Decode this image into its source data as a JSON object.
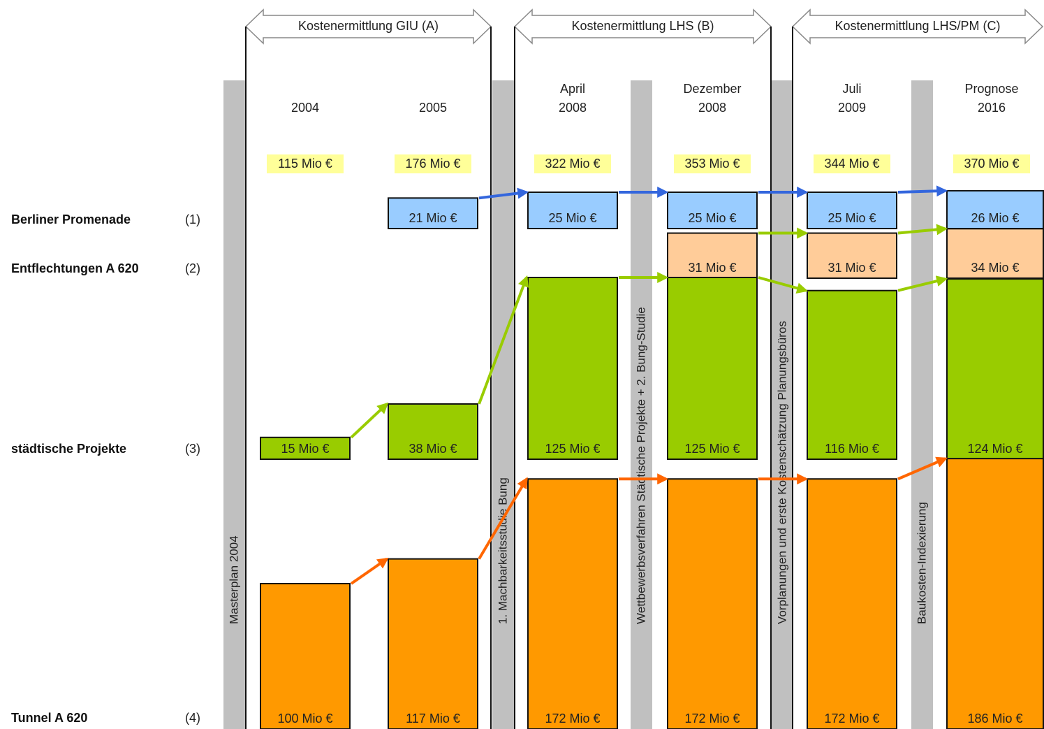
{
  "chart_data": {
    "type": "bar",
    "phases": [
      "Kostenermittlung GIU (A)",
      "Kostenermittlung LHS (B)",
      "Kostenermittlung LHS/PM (C)"
    ],
    "steps": [
      "Masterplan 2004",
      "1. Machbarkeitsstudie Bung",
      "Wettbewerbsverfahren Städtische Projekte + 2. Bung-Studie",
      "Vorplanungen und erste Kostenschätzung Planungsbüros",
      "Baukosten-Indexierung"
    ],
    "categories": [
      "2004",
      "2005",
      "April 2008",
      "Dezember 2008",
      "Juli 2009",
      "Prognose 2016"
    ],
    "totals": [
      115,
      176,
      322,
      353,
      344,
      370
    ],
    "total_labels": [
      "115 Mio €",
      "176 Mio €",
      "322 Mio €",
      "353 Mio €",
      "344 Mio €",
      "370 Mio €"
    ],
    "series": [
      {
        "name": "Berliner Promenade",
        "number": "(1)",
        "color": "#99ccff",
        "arrow_color": "#3366dd",
        "values": [
          null,
          21,
          25,
          25,
          25,
          26
        ],
        "value_labels": [
          null,
          "21 Mio €",
          "25 Mio €",
          "25 Mio €",
          "25 Mio €",
          "26 Mio €"
        ]
      },
      {
        "name": "Entflechtungen A 620",
        "number": "(2)",
        "color": "#ffcc99",
        "arrow_color": "#99cc00",
        "values": [
          null,
          null,
          null,
          31,
          31,
          34
        ],
        "value_labels": [
          null,
          null,
          null,
          "31 Mio €",
          "31 Mio €",
          "34 Mio €"
        ]
      },
      {
        "name": "städtische Projekte",
        "number": "(3)",
        "color": "#99cc00",
        "arrow_color": "#99cc00",
        "values": [
          15,
          38,
          125,
          125,
          116,
          124
        ],
        "value_labels": [
          "15 Mio €",
          "38 Mio €",
          "125 Mio €",
          "125 Mio €",
          "116 Mio €",
          "124 Mio €"
        ]
      },
      {
        "name": "Tunnel A 620",
        "number": "(4)",
        "color": "#ff9900",
        "arrow_color": "#ff6600",
        "values": [
          100,
          117,
          172,
          172,
          172,
          186
        ],
        "value_labels": [
          "100 Mio €",
          "117 Mio €",
          "172 Mio €",
          "172 Mio €",
          "172 Mio €",
          "186 Mio €"
        ]
      }
    ]
  }
}
